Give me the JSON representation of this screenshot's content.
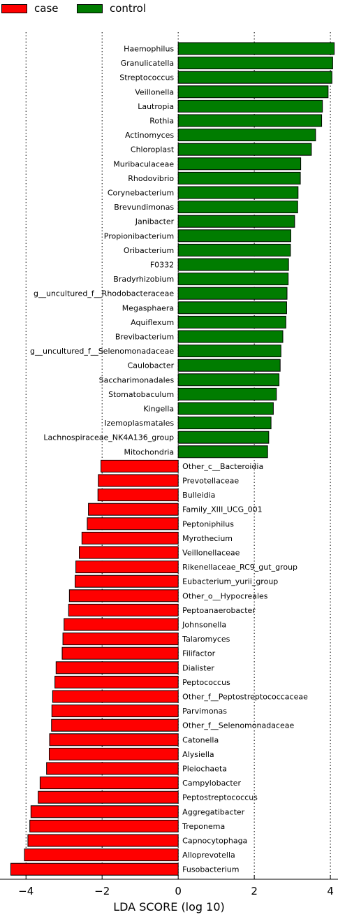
{
  "legend": {
    "case_label": "case",
    "control_label": "control",
    "case_color": "#ff0000",
    "control_color": "#007c00"
  },
  "chart_data": {
    "type": "bar",
    "orientation": "horizontal",
    "xlabel": "LDA SCORE (log 10)",
    "xlim": [
      -4.5,
      4.2
    ],
    "xticks": [
      -4,
      -2,
      0,
      2,
      4
    ],
    "grid": "vertical dotted",
    "legend_position": "top-left",
    "series": [
      {
        "name": "control",
        "color": "#007c00"
      },
      {
        "name": "case",
        "color": "#ff0000"
      }
    ],
    "bars": [
      {
        "label": "Haemophilus",
        "value": 4.1,
        "group": "control"
      },
      {
        "label": "Granulicatella",
        "value": 4.06,
        "group": "control"
      },
      {
        "label": "Streptococcus",
        "value": 4.04,
        "group": "control"
      },
      {
        "label": "Veillonella",
        "value": 3.94,
        "group": "control"
      },
      {
        "label": "Lautropia",
        "value": 3.79,
        "group": "control"
      },
      {
        "label": "Rothia",
        "value": 3.77,
        "group": "control"
      },
      {
        "label": "Actinomyces",
        "value": 3.61,
        "group": "control"
      },
      {
        "label": "Chloroplast",
        "value": 3.5,
        "group": "control"
      },
      {
        "label": "Muribaculaceae",
        "value": 3.22,
        "group": "control"
      },
      {
        "label": "Rhodovibrio",
        "value": 3.21,
        "group": "control"
      },
      {
        "label": "Corynebacterium",
        "value": 3.15,
        "group": "control"
      },
      {
        "label": "Brevundimonas",
        "value": 3.14,
        "group": "control"
      },
      {
        "label": "Janibacter",
        "value": 3.06,
        "group": "control"
      },
      {
        "label": "Propionibacterium",
        "value": 2.96,
        "group": "control"
      },
      {
        "label": "Oribacterium",
        "value": 2.95,
        "group": "control"
      },
      {
        "label": "F0332",
        "value": 2.9,
        "group": "control"
      },
      {
        "label": "Bradyrhizobium",
        "value": 2.89,
        "group": "control"
      },
      {
        "label": "g__uncultured_f__Rhodobacteraceae",
        "value": 2.86,
        "group": "control"
      },
      {
        "label": "Megasphaera",
        "value": 2.85,
        "group": "control"
      },
      {
        "label": "Aquiflexum",
        "value": 2.83,
        "group": "control"
      },
      {
        "label": "Brevibacterium",
        "value": 2.75,
        "group": "control"
      },
      {
        "label": "g__uncultured_f__Selenomonadaceae",
        "value": 2.7,
        "group": "control"
      },
      {
        "label": "Caulobacter",
        "value": 2.68,
        "group": "control"
      },
      {
        "label": "Saccharimonadales",
        "value": 2.65,
        "group": "control"
      },
      {
        "label": "Stomatobaculum",
        "value": 2.58,
        "group": "control"
      },
      {
        "label": "Kingella",
        "value": 2.5,
        "group": "control"
      },
      {
        "label": "Izemoplasmatales",
        "value": 2.44,
        "group": "control"
      },
      {
        "label": "Lachnospiraceae_NK4A136_group",
        "value": 2.38,
        "group": "control"
      },
      {
        "label": "Mitochondria",
        "value": 2.35,
        "group": "control"
      },
      {
        "label": "Other_c__Bacteroidia",
        "value": -2.03,
        "group": "case"
      },
      {
        "label": "Prevotellaceae",
        "value": -2.1,
        "group": "case"
      },
      {
        "label": "Bulleidia",
        "value": -2.11,
        "group": "case"
      },
      {
        "label": "Family_XIII_UCG_001",
        "value": -2.36,
        "group": "case"
      },
      {
        "label": "Peptoniphilus",
        "value": -2.39,
        "group": "case"
      },
      {
        "label": "Myrothecium",
        "value": -2.53,
        "group": "case"
      },
      {
        "label": "Veillonellaceae",
        "value": -2.6,
        "group": "case"
      },
      {
        "label": "Rikenellaceae_RC9_gut_group",
        "value": -2.69,
        "group": "case"
      },
      {
        "label": "Eubacterium_yurii_group",
        "value": -2.71,
        "group": "case"
      },
      {
        "label": "Other_o__Hypocreales",
        "value": -2.86,
        "group": "case"
      },
      {
        "label": "Peptoanaerobacter",
        "value": -2.88,
        "group": "case"
      },
      {
        "label": "Johnsonella",
        "value": -3.0,
        "group": "case"
      },
      {
        "label": "Talaromyces",
        "value": -3.03,
        "group": "case"
      },
      {
        "label": "Filifactor",
        "value": -3.05,
        "group": "case"
      },
      {
        "label": "Dialister",
        "value": -3.21,
        "group": "case"
      },
      {
        "label": "Peptococcus",
        "value": -3.24,
        "group": "case"
      },
      {
        "label": "Other_f__Peptostreptococcaceae",
        "value": -3.3,
        "group": "case"
      },
      {
        "label": "Parvimonas",
        "value": -3.32,
        "group": "case"
      },
      {
        "label": "Other_f__Selenomonadaceae",
        "value": -3.33,
        "group": "case"
      },
      {
        "label": "Catonella",
        "value": -3.38,
        "group": "case"
      },
      {
        "label": "Alysiella",
        "value": -3.39,
        "group": "case"
      },
      {
        "label": "Pleiochaeta",
        "value": -3.46,
        "group": "case"
      },
      {
        "label": "Campylobacter",
        "value": -3.63,
        "group": "case"
      },
      {
        "label": "Peptostreptococcus",
        "value": -3.68,
        "group": "case"
      },
      {
        "label": "Aggregatibacter",
        "value": -3.87,
        "group": "case"
      },
      {
        "label": "Treponema",
        "value": -3.9,
        "group": "case"
      },
      {
        "label": "Capnocytophaga",
        "value": -3.95,
        "group": "case"
      },
      {
        "label": "Alloprevotella",
        "value": -4.04,
        "group": "case"
      },
      {
        "label": "Fusobacterium",
        "value": -4.4,
        "group": "case"
      }
    ]
  }
}
